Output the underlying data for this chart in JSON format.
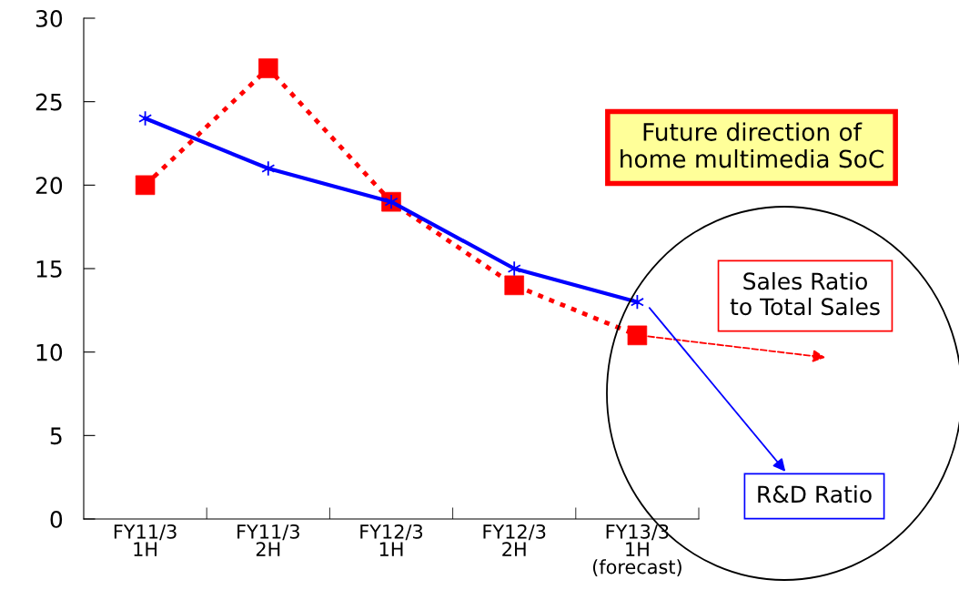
{
  "chart_data": {
    "type": "line",
    "title": "Future direction of\nhome multimedia SoC",
    "categories": [
      "FY11/3\n1H",
      "FY11/3\n2H",
      "FY12/3\n1H",
      "FY12/3\n2H",
      "FY13/3\n1H\n(forecast)"
    ],
    "series": [
      {
        "name": "Sales Ratio\nto Total Sales",
        "color": "#ff0000",
        "values": [
          20,
          27,
          19,
          14,
          11
        ],
        "marker": "square",
        "line_style": "dotted"
      },
      {
        "name": "R&D Ratio",
        "color": "#0000ff",
        "values": [
          24,
          21,
          19,
          15,
          13
        ],
        "marker": "cross",
        "line_style": "solid"
      }
    ],
    "ylim": [
      0,
      30
    ],
    "yticks": [
      0,
      5,
      10,
      15,
      20,
      25,
      30
    ],
    "grid": false,
    "legend": "right"
  }
}
